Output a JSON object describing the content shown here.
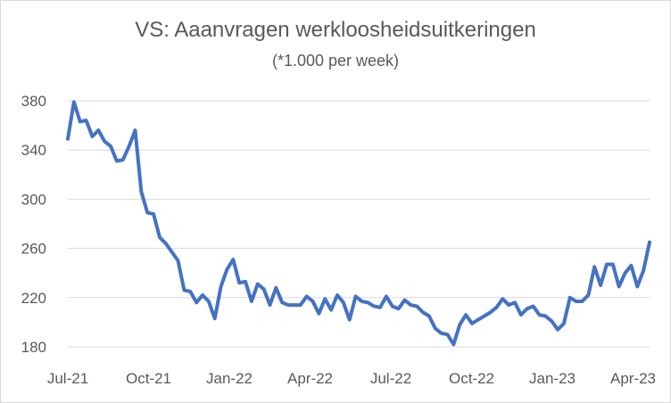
{
  "chart_data": {
    "type": "line",
    "title": "VS: Aaanvragen werkloosheidsuitkeringen",
    "subtitle": "(*1.000 per week)",
    "xlabel": "",
    "ylabel": "",
    "ylim": [
      180,
      380
    ],
    "y_ticks": [
      180,
      220,
      260,
      300,
      340,
      380
    ],
    "x_tick_labels": [
      "Jul-21",
      "Oct-21",
      "Jan-22",
      "Apr-22",
      "Jul-22",
      "Oct-22",
      "Jan-23",
      "Apr-23"
    ],
    "grid": true,
    "legend": "none",
    "series": [
      {
        "color": "#4472C4",
        "values": [
          349,
          379,
          363,
          364,
          351,
          356,
          347,
          343,
          331,
          332,
          343,
          356,
          306,
          289,
          288,
          269,
          264,
          257,
          250,
          226,
          225,
          216,
          222,
          217,
          203,
          229,
          243,
          251,
          232,
          233,
          217,
          231,
          227,
          214,
          228,
          216,
          214,
          214,
          214,
          221,
          217,
          207,
          219,
          210,
          222,
          216,
          202,
          221,
          217,
          216,
          213,
          212,
          221,
          213,
          211,
          218,
          214,
          213,
          208,
          205,
          195,
          191,
          190,
          182,
          198,
          206,
          199,
          202,
          205,
          208,
          212,
          219,
          214,
          216,
          206,
          211,
          213,
          206,
          205,
          201,
          194,
          199,
          220,
          217,
          217,
          222,
          245,
          230,
          247,
          247,
          229,
          240,
          246,
          229,
          242,
          265
        ]
      }
    ]
  }
}
